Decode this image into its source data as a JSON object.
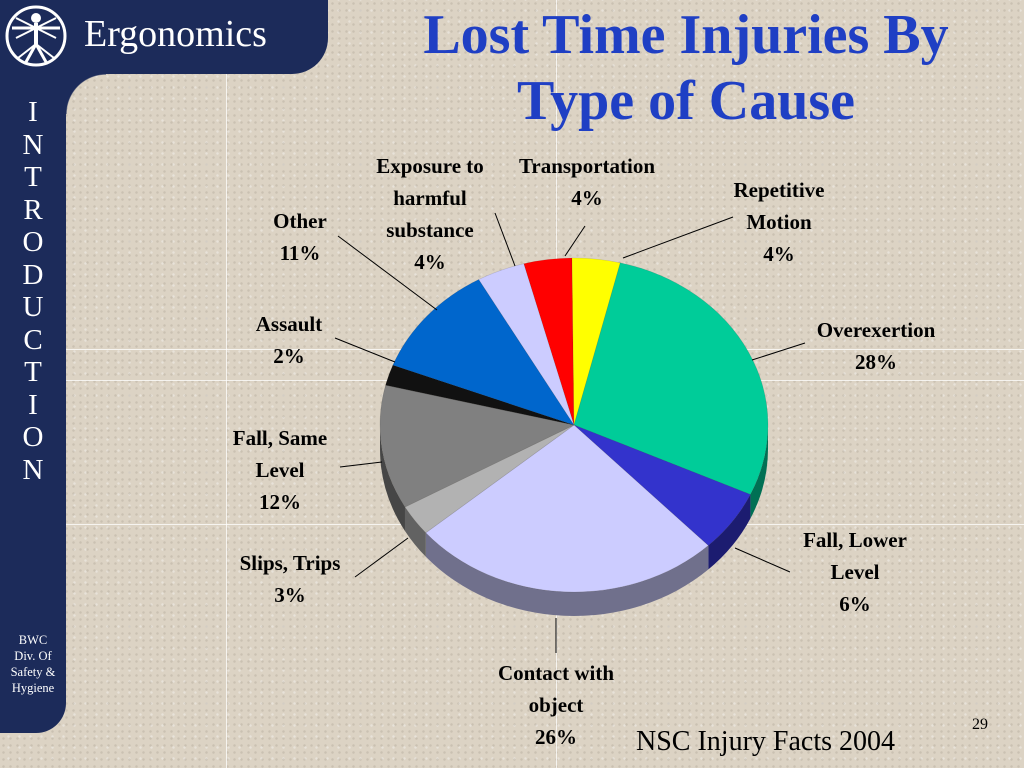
{
  "header": {
    "brand": "Ergonomics",
    "title_line1": "Lost Time Injuries By",
    "title_line2": "Type of Cause"
  },
  "sidebar": {
    "vertical_letters": [
      "I",
      "N",
      "T",
      "R",
      "O",
      "D",
      "U",
      "C",
      "T",
      "I",
      "O",
      "N"
    ],
    "org_lines": [
      "BWC",
      "Div. Of",
      "Safety &",
      "Hygiene"
    ]
  },
  "icons": {
    "logo": "vitruvian-man-icon"
  },
  "colors": {
    "navy": "#1c2b5a",
    "title_blue": "#1f3fc4"
  },
  "chart_data": {
    "type": "pie",
    "title": "Lost Time Injuries By Type of Cause",
    "unit": "%",
    "legend": "none",
    "slices": [
      {
        "label_lines": [
          "Transportation"
        ],
        "value": 4,
        "color": "#ff0000"
      },
      {
        "label_lines": [
          "Repetitive",
          "Motion"
        ],
        "value": 4,
        "color": "#ffff00"
      },
      {
        "label_lines": [
          "Overexertion"
        ],
        "value": 28,
        "color": "#00cc99"
      },
      {
        "label_lines": [
          "Fall, Lower",
          "Level"
        ],
        "value": 6,
        "color": "#3333cc"
      },
      {
        "label_lines": [
          "Contact with",
          "object"
        ],
        "value": 26,
        "color": "#ccccff"
      },
      {
        "label_lines": [
          "Slips, Trips"
        ],
        "value": 3,
        "color": "#b2b2b2"
      },
      {
        "label_lines": [
          "Fall, Same",
          "Level"
        ],
        "value": 12,
        "color": "#808080"
      },
      {
        "label_lines": [
          "Assault"
        ],
        "value": 2,
        "color": "#111111"
      },
      {
        "label_lines": [
          "Other"
        ],
        "value": 11,
        "color": "#0066cc"
      },
      {
        "label_lines": [
          "Exposure to",
          "harmful",
          "substance"
        ],
        "value": 4,
        "color": "#ccccff"
      }
    ]
  },
  "footer": {
    "source": "NSC Injury Facts 2004",
    "page_number": "29"
  }
}
